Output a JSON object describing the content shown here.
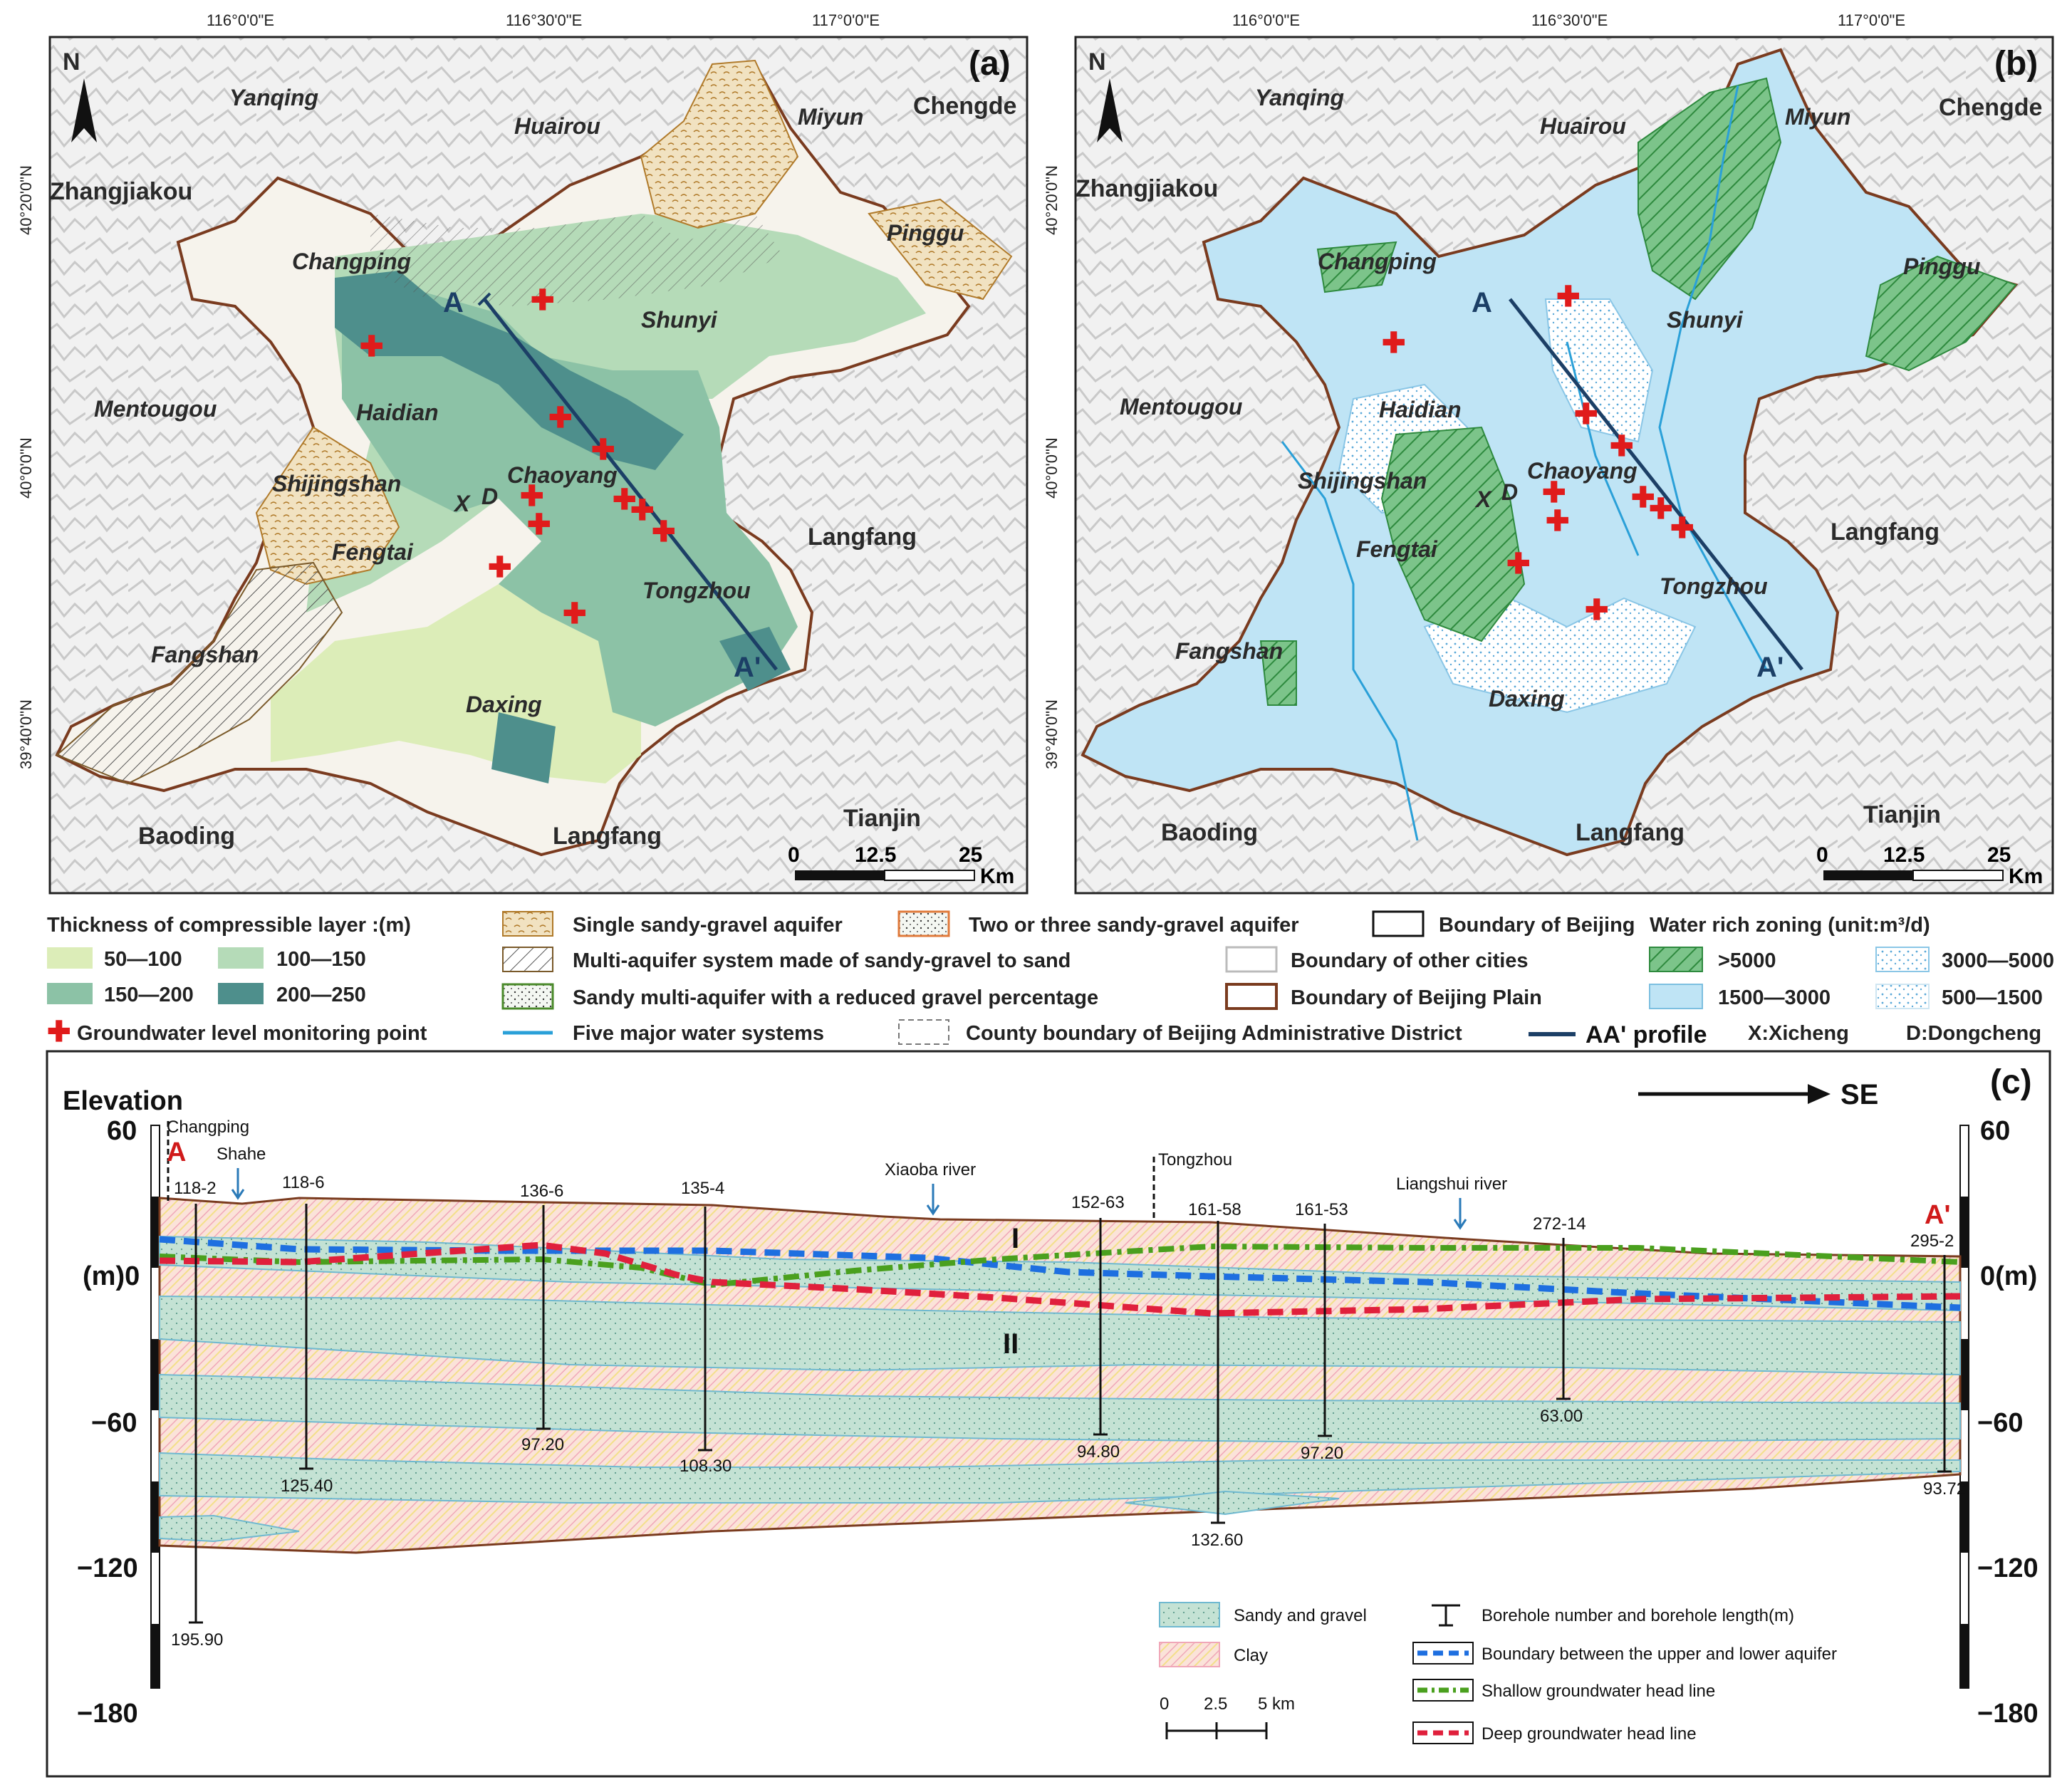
{
  "colors": {
    "t50": "#dcedb8",
    "t100": "#b5dbb8",
    "t150": "#8cc2a6",
    "t200": "#4e8f8c",
    "plain_border": "#7a3b1f",
    "water": "#bfe4f5",
    "green_hatch": "#6fbf73",
    "profile": "#1c3f66",
    "monitor": "#e01b1b",
    "river": "#2aa0d8",
    "sand": "#c6e3d8",
    "sand_edge": "#6fb9d0",
    "clay": "#f7d0d0",
    "blue_line": "#1e6fe0",
    "green_line": "#4aa01e",
    "red_line": "#e0203c"
  },
  "panel_a": {
    "label": "(a)",
    "north": "N",
    "lon_ticks": [
      "116°0'0\"E",
      "116°30'0\"E",
      "117°0'0\"E"
    ],
    "lat_ticks": [
      "40°20'0\"N",
      "40°0'0\"N",
      "39°40'0\"N"
    ],
    "districts": [
      "Yanqing",
      "Huairou",
      "Miyun",
      "Changping",
      "Shunyi",
      "Pinggu",
      "Haidian",
      "Mentougou",
      "Shijingshan",
      "Chaoyang",
      "Fengtai",
      "Tongzhou",
      "Fangshan",
      "Daxing"
    ],
    "cities": [
      "Zhangjiakou",
      "Chengde",
      "Langfang",
      "Tianjin",
      "Baoding",
      "Langfang"
    ],
    "xd": [
      "X",
      "D"
    ],
    "profile_a": "A",
    "profile_b": "A'",
    "scale": [
      "0",
      "12.5",
      "25",
      "Km"
    ]
  },
  "panel_b": {
    "label": "(b)",
    "north": "N",
    "lon_ticks": [
      "116°0'0\"E",
      "116°30'0\"E",
      "117°0'0\"E"
    ],
    "lat_ticks": [
      "40°20'0\"N",
      "40°0'0\"N",
      "39°40'0\"N"
    ],
    "districts": [
      "Yanqing",
      "Huairou",
      "Miyun",
      "Changping",
      "Shunyi",
      "Pinggu",
      "Haidian",
      "Mentougou",
      "Shijingshan",
      "Chaoyang",
      "Fengtai",
      "Tongzhou",
      "Fangshan",
      "Daxing"
    ],
    "cities": [
      "Zhangjiakou",
      "Chengde",
      "Langfang",
      "Tianjin",
      "Baoding",
      "Langfang"
    ],
    "xd": [
      "X",
      "D"
    ],
    "profile_a": "A",
    "profile_b": "A'",
    "scale": [
      "0",
      "12.5",
      "25",
      "Km"
    ]
  },
  "legend": {
    "thickness_title": "Thickness of compressible layer :(m)",
    "t1": "50—100",
    "t2": "100—150",
    "t3": "150—200",
    "t4": "200—250",
    "monitor": "Groundwater level monitoring point",
    "single": "Single sandy-gravel aquifer",
    "multi": "Multi-aquifer system made of sandy-gravel to sand",
    "sandy": "Sandy multi-aquifer with a reduced gravel percentage",
    "rivers": "Five major water systems",
    "two_three": "Two or three sandy-gravel aquifer",
    "other_cities": "Boundary of other cities",
    "county": "County boundary of Beijing Administrative District",
    "beijing": "Boundary of Beijing",
    "plain": "Boundary of Beijing Plain",
    "profile": "AA' profile",
    "water_title": "Water rich zoning (unit:m³/d)",
    "w1": ">5000",
    "w2": "3000—5000",
    "w3": "1500—3000",
    "w4": "500—1500",
    "x_note": "X:Xicheng",
    "d_note": "D:Dongcheng"
  },
  "section": {
    "label": "(c)",
    "elevation": "Elevation",
    "direction": "SE",
    "y_ticks_left": [
      "60",
      "(m)0",
      "−60",
      "−120",
      "−180"
    ],
    "y_ticks_right": [
      "60",
      "0(m)",
      "−60",
      "−120",
      "−180"
    ],
    "end_a": "A",
    "end_b": "A'",
    "places": [
      "Changping",
      "Shahe",
      "Xiaoba river",
      "Tongzhou",
      "Liangshui river"
    ],
    "boreholes": [
      {
        "id": "118-2",
        "depth": "195.90"
      },
      {
        "id": "118-6",
        "depth": "125.40"
      },
      {
        "id": "136-6",
        "depth": "97.20"
      },
      {
        "id": "135-4",
        "depth": "108.30"
      },
      {
        "id": "152-63",
        "depth": "94.80"
      },
      {
        "id": "161-58",
        "depth": "132.60"
      },
      {
        "id": "161-53",
        "depth": "97.20"
      },
      {
        "id": "272-14",
        "depth": "63.00"
      },
      {
        "id": "295-2",
        "depth": "93.72"
      }
    ],
    "layer_i": "I",
    "layer_ii": "II",
    "legend": {
      "sand": "Sandy and gravel",
      "clay": "Clay",
      "borehole": "Borehole number and borehole length(m)",
      "boundary": "Boundary between the upper and lower aquifer",
      "shallow": "Shallow groundwater head line",
      "deep": "Deep groundwater head line"
    },
    "scale": [
      "0",
      "2.5",
      "5 km"
    ]
  }
}
